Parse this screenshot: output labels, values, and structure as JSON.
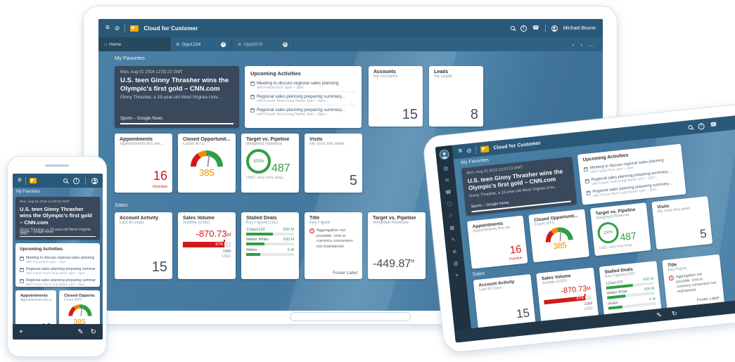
{
  "app": {
    "title": "Cloud for Customer",
    "user": "Michael Boone"
  },
  "icons": {
    "menu": "≡",
    "launchpad": "⊘",
    "home": "⌂",
    "tab": "⊕",
    "close": "×",
    "back": "‹",
    "forward": "›",
    "overflow": "…",
    "alert": "!",
    "phone": "☎",
    "add": "+",
    "edit": "✎",
    "refresh": "↻"
  },
  "tabs": {
    "home": "Home",
    "opp1": "Opp1234",
    "opp2": "Opp5678"
  },
  "sections": {
    "favorites": "My Favorites",
    "sales": "Sales"
  },
  "news": {
    "date": "Mon, Aug 01 2016 12:53:23 GMT",
    "headline": "U.S. teen Ginny Thrasher wins the Olympic's first gold – CNN.com",
    "summary": "Ginny Thrasher, a 19-year-old West Virginia Univ...",
    "source": "Sports – Google News"
  },
  "upcoming": {
    "title": "Upcoming Activities",
    "items": [
      {
        "title": "Meeting to discuss regional sales planning",
        "detail": "with FutureTech 1pm – 2pm"
      },
      {
        "title": "Regional sales planning preparing summary...",
        "detail": "with Future Tech-Long Name 1pm – 2pm..."
      },
      {
        "title": "Regional sales planning preparing summary...",
        "detail": "with Future Tech-Long Name 1pm – 2pm..."
      }
    ]
  },
  "tiles": {
    "accounts": {
      "title": "Accounts",
      "subtitle": "My Accounts",
      "value": "15"
    },
    "leads": {
      "title": "Leads",
      "subtitle": "My Leads",
      "value": "8"
    },
    "appointments": {
      "title": "Appointments",
      "subtitle": "Appointments this we...",
      "value": "16",
      "status": "Overdue"
    },
    "closed_opportunities": {
      "title": "Closed Opportunit...",
      "subtitle": "Count MTD",
      "value": "385"
    },
    "target_vs_pipeline": {
      "title": "Target vs. Pipeline",
      "subtitle": "Weighted Revenue",
      "percent": "100%",
      "value": "487",
      "footer": "USD, very very long..."
    },
    "visits": {
      "title": "Visits",
      "subtitle": "My visits this week",
      "value": "5"
    },
    "account_activity": {
      "title": "Account Activity",
      "subtitle": "Last 60 Days",
      "value": "15"
    },
    "sales_volume": {
      "title": "Sales Volume",
      "subtitle": "Subtitle (USD)",
      "value": "-870.73",
      "unit": "M",
      "bar_pct": 87,
      "bar_label": "87%",
      "scale": "10M",
      "currency": "USD"
    },
    "stalled_deals": {
      "title": "Stalled Deals",
      "subtitle": "Key Figure(USD)",
      "rows": [
        {
          "name": "123arc123",
          "value": "500 M",
          "pct": 56
        },
        {
          "name": "Walter White",
          "value": "500 M",
          "pct": 38
        },
        {
          "name": "Walter",
          "value": "5 M",
          "pct": 30
        }
      ]
    },
    "title_key_figure": {
      "title": "Title",
      "subtitle": "Key Figure",
      "warning": "Aggregation not possible. Unit or currency conversion not maintained.",
      "footer": "Footer Label"
    },
    "target_vs_pipeline_revenue": {
      "title": "Target vs. Pipeline",
      "subtitle": "Weighted Revenue",
      "value": "-449.87",
      "unit": "M"
    }
  },
  "tablet_sidebar": {
    "icons": [
      "▤",
      "✉",
      "☎",
      "☐",
      "⚐",
      "▦",
      "✎",
      "⊕",
      "▥",
      "≡"
    ]
  },
  "colors": {
    "appbar": "#2a5878",
    "screen_blue": "#44789f",
    "red": "#d21919",
    "orange": "#ee8c00",
    "green": "#2f9e44",
    "gold": "#f0ab00"
  }
}
